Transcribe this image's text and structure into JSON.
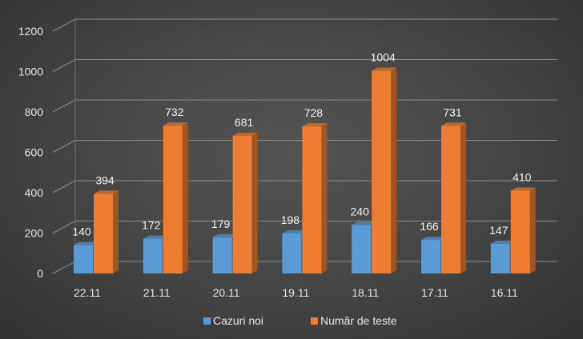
{
  "chart_data": {
    "type": "bar",
    "categories": [
      "22.11",
      "21.11",
      "20.11",
      "19.11",
      "18.11",
      "17.11",
      "16.11"
    ],
    "series": [
      {
        "name": "Cazuri noi",
        "values": [
          140,
          172,
          179,
          198,
          240,
          166,
          147
        ],
        "color": "#5b9bd5"
      },
      {
        "name": "Număr de teste",
        "values": [
          394,
          732,
          681,
          728,
          1004,
          731,
          410
        ],
        "color": "#ed7d31"
      }
    ],
    "y_ticks": [
      0,
      200,
      400,
      600,
      800,
      1000,
      1200
    ],
    "ylim": [
      0,
      1200
    ],
    "grid": true,
    "legend": "bottom",
    "style": "3d-column",
    "title": "",
    "xlabel": "",
    "ylabel": ""
  }
}
